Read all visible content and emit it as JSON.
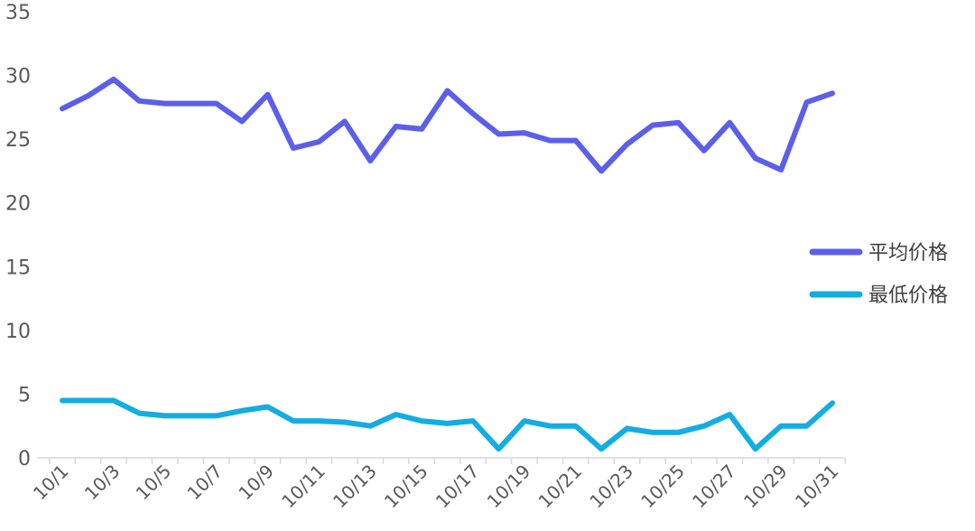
{
  "chart_data": {
    "type": "line",
    "title": "",
    "xlabel": "",
    "ylabel": "",
    "ylim": [
      0,
      35
    ],
    "yticks": [
      0,
      5,
      10,
      15,
      20,
      25,
      30,
      35
    ],
    "grid": false,
    "legend_position": "right",
    "categories": [
      "10/1",
      "10/2",
      "10/3",
      "10/4",
      "10/5",
      "10/6",
      "10/7",
      "10/8",
      "10/9",
      "10/10",
      "10/11",
      "10/12",
      "10/13",
      "10/14",
      "10/15",
      "10/16",
      "10/17",
      "10/18",
      "10/19",
      "10/20",
      "10/21",
      "10/22",
      "10/23",
      "10/24",
      "10/25",
      "10/26",
      "10/27",
      "10/28",
      "10/29",
      "10/30",
      "10/31"
    ],
    "xtick_labels": [
      "10/1",
      "10/3",
      "10/5",
      "10/7",
      "10/9",
      "10/11",
      "10/13",
      "10/15",
      "10/17",
      "10/19",
      "10/21",
      "10/23",
      "10/25",
      "10/27",
      "10/29",
      "10/31"
    ],
    "series": [
      {
        "name": "平均价格",
        "color": "#5B5FEA",
        "values": [
          27.4,
          28.4,
          29.7,
          28.0,
          27.8,
          27.8,
          27.8,
          26.4,
          28.5,
          24.3,
          24.8,
          26.4,
          23.3,
          26.0,
          25.8,
          28.8,
          27.0,
          25.4,
          25.5,
          24.9,
          24.9,
          22.5,
          24.6,
          26.1,
          26.3,
          24.1,
          26.3,
          23.5,
          22.6,
          27.9,
          28.6
        ]
      },
      {
        "name": "最低价格",
        "color": "#12ADE3",
        "values": [
          4.5,
          4.5,
          4.5,
          3.5,
          3.3,
          3.3,
          3.3,
          3.7,
          4.0,
          2.9,
          2.9,
          2.8,
          2.5,
          3.4,
          2.9,
          2.7,
          2.9,
          0.7,
          2.9,
          2.5,
          2.5,
          0.7,
          2.3,
          2.0,
          2.0,
          2.5,
          3.4,
          0.7,
          2.5,
          2.5,
          4.3
        ]
      }
    ]
  }
}
